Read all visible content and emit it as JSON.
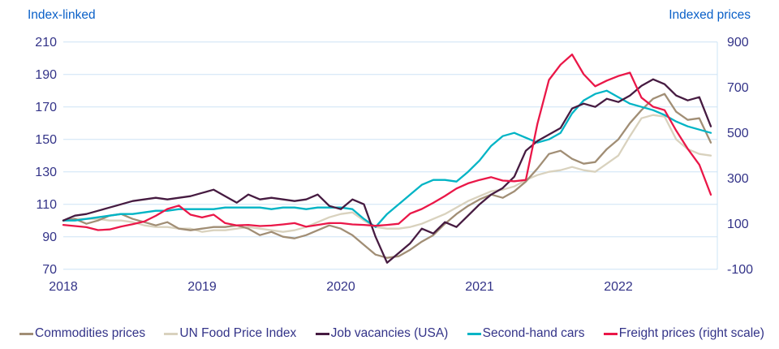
{
  "chart_data": {
    "type": "line",
    "left_axis": {
      "title": "Index-linked",
      "ticks": [
        210,
        190,
        170,
        150,
        130,
        110,
        90,
        70
      ],
      "range": [
        70,
        210
      ]
    },
    "right_axis": {
      "title": "Indexed prices",
      "ticks": [
        900,
        700,
        500,
        300,
        100,
        -100
      ],
      "range": [
        -100,
        900
      ]
    },
    "x_axis": {
      "tick_labels": [
        "2018",
        "2019",
        "2020",
        "2021",
        "2022"
      ],
      "start": "2018-01",
      "end": "2022-09",
      "frequency": "monthly",
      "months_per_tick": 12
    },
    "grid": {
      "horizontal": true,
      "vertical": false,
      "color": "#cde4f6"
    },
    "legend_position": "bottom",
    "series": [
      {
        "name": "Commodities prices",
        "axis": "left",
        "color": "#a18e75",
        "values": [
          100,
          101,
          98,
          100,
          103,
          104,
          101,
          99,
          97,
          99,
          95,
          94,
          95,
          96,
          96,
          97,
          95,
          91,
          93,
          90,
          89,
          91,
          94,
          97,
          95,
          91,
          85,
          79,
          77,
          78,
          82,
          87,
          91,
          98,
          104,
          109,
          113,
          116,
          114,
          118,
          124,
          132,
          141,
          143,
          138,
          135,
          136,
          144,
          150,
          160,
          168,
          175,
          178,
          167,
          162,
          163,
          148
        ]
      },
      {
        "name": "UN Food Price Index",
        "axis": "left",
        "color": "#d9d2be",
        "values": [
          100,
          101,
          101,
          101,
          100,
          100,
          99,
          97,
          96,
          96,
          95,
          95,
          93,
          94,
          94,
          95,
          96,
          95,
          94,
          93,
          94,
          96,
          99,
          102,
          104,
          105,
          100,
          96,
          95,
          95,
          96,
          98,
          101,
          104,
          108,
          112,
          115,
          118,
          119,
          121,
          125,
          128,
          130,
          131,
          133,
          131,
          130,
          135,
          140,
          152,
          163,
          165,
          164,
          150,
          144,
          141,
          140
        ]
      },
      {
        "name": "Job vacancies (USA)",
        "axis": "left",
        "color": "#461b41",
        "values": [
          100,
          103,
          104,
          106,
          108,
          110,
          112,
          113,
          114,
          113,
          114,
          115,
          117,
          119,
          115,
          111,
          116,
          113,
          114,
          113,
          112,
          113,
          116,
          109,
          107,
          113,
          110,
          90,
          74,
          80,
          86,
          95,
          92,
          99,
          96,
          103,
          110,
          116,
          120,
          127,
          143,
          149,
          153,
          157,
          169,
          172,
          170,
          175,
          173,
          177,
          183,
          187,
          184,
          177,
          174,
          176,
          158
        ]
      },
      {
        "name": "Second-hand cars",
        "axis": "left",
        "color": "#00b4c5",
        "values": [
          100,
          100,
          101,
          102,
          103,
          104,
          104,
          105,
          106,
          106,
          107,
          107,
          107,
          107,
          108,
          108,
          108,
          108,
          107,
          108,
          108,
          107,
          108,
          108,
          108,
          107,
          101,
          96,
          104,
          110,
          116,
          122,
          125,
          125,
          124,
          130,
          137,
          146,
          152,
          154,
          151,
          148,
          150,
          154,
          166,
          174,
          178,
          180,
          176,
          172,
          170,
          168,
          165,
          161,
          158,
          156,
          154
        ]
      },
      {
        "name": "Freight prices (right scale)",
        "axis": "right",
        "color": "#ea1748",
        "values": [
          95,
          90,
          85,
          72,
          75,
          88,
          98,
          110,
          135,
          165,
          180,
          140,
          128,
          140,
          103,
          93,
          95,
          90,
          92,
          97,
          103,
          87,
          95,
          103,
          103,
          97,
          95,
          91,
          95,
          100,
          145,
          165,
          192,
          222,
          255,
          278,
          293,
          305,
          290,
          287,
          293,
          540,
          733,
          800,
          845,
          758,
          705,
          730,
          750,
          765,
          655,
          615,
          600,
          510,
          430,
          360,
          228
        ]
      }
    ]
  },
  "colors": {
    "axis_title": "#0a60c8",
    "tick_label": "#333388",
    "legend_text": "#333388",
    "grid": "#cde4f6",
    "plot_right_border": "#cde4f6"
  }
}
